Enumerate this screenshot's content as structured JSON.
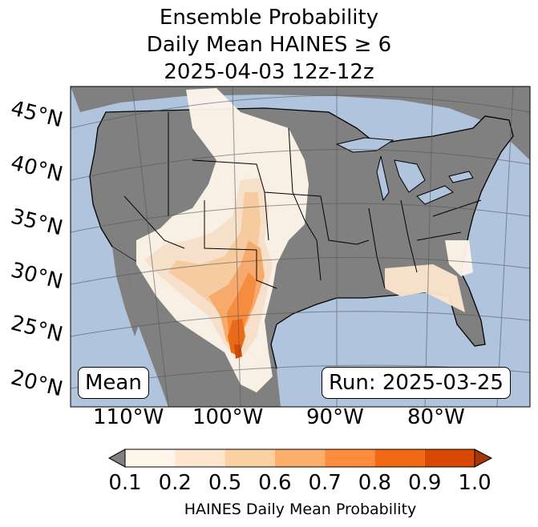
{
  "title": {
    "line1": "Ensemble Probability",
    "line2": "Daily Mean HAINES ≥ 6",
    "line3": "2025-04-03 12z-12z"
  },
  "map": {
    "colors": {
      "ocean": "#b0c4de",
      "land": "#808080",
      "border": "#000000"
    },
    "lat_labels": [
      "45°N",
      "40°N",
      "35°N",
      "30°N",
      "25°N",
      "20°N"
    ],
    "lon_labels": [
      "110°W",
      "100°W",
      "90°W",
      "80°W"
    ],
    "stat_box": "Mean",
    "run_box": "Run: 2025-03-25"
  },
  "colorbar": {
    "ticks": [
      "0.1",
      "0.2",
      "0.5",
      "0.6",
      "0.7",
      "0.8",
      "0.9",
      "1.0"
    ],
    "colors": [
      "#fff5eb",
      "#fee6ce",
      "#fdd0a2",
      "#fdae6b",
      "#fd8d3c",
      "#f16913",
      "#d94801",
      "#a63603"
    ],
    "under_color": "#808080",
    "label": "HAINES Daily Mean Probability"
  }
}
